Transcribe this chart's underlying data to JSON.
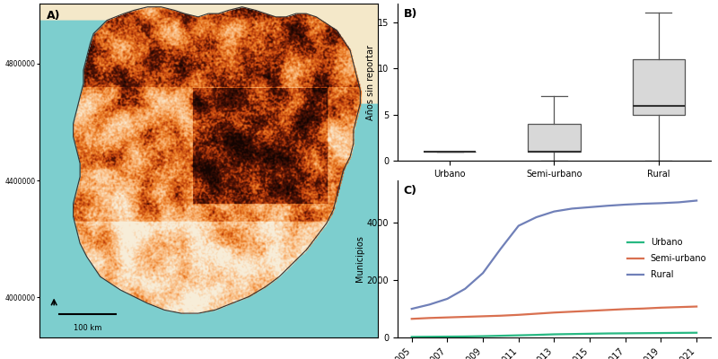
{
  "fig_width": 8.0,
  "fig_height": 4.0,
  "panel_bg": "#ffffff",
  "ocean_color": "#7ecece",
  "land_bg_color": "#f0e8d0",
  "boxplot": {
    "label": "B)",
    "ylabel": "Años sin reportar",
    "categories": [
      "Urbano",
      "Semi-urbano",
      "Rural"
    ],
    "urbano": {
      "median": 1,
      "q1": 1,
      "q3": 1,
      "whislo": 1,
      "whishi": 1
    },
    "semi_urbano": {
      "median": 1,
      "q1": 1,
      "q3": 4,
      "whislo": 0,
      "whishi": 7
    },
    "rural": {
      "median": 6,
      "q1": 5,
      "q3": 11,
      "whislo": 0,
      "whishi": 16
    },
    "ylim": [
      0,
      17
    ],
    "yticks": [
      0,
      5,
      10,
      15
    ],
    "box_facecolor": "#d8d8d8",
    "box_edgecolor": "#555555",
    "median_color": "#333333",
    "whisker_color": "#555555"
  },
  "lineplot": {
    "label": "C)",
    "ylabel": "Municipios",
    "xlabel_values": [
      "2005",
      "2007",
      "2009",
      "2011",
      "2013",
      "2015",
      "2017",
      "2019",
      "2021"
    ],
    "x_numeric": [
      2005,
      2006,
      2007,
      2008,
      2009,
      2010,
      2011,
      2012,
      2013,
      2014,
      2015,
      2016,
      2017,
      2018,
      2019,
      2020,
      2021
    ],
    "urbano_y": [
      20,
      25,
      30,
      35,
      45,
      60,
      75,
      90,
      110,
      120,
      130,
      140,
      145,
      150,
      155,
      160,
      165
    ],
    "semi_urbano_y": [
      650,
      680,
      700,
      720,
      740,
      760,
      790,
      830,
      870,
      900,
      930,
      960,
      990,
      1010,
      1040,
      1060,
      1080
    ],
    "rural_y": [
      1000,
      1150,
      1350,
      1700,
      2250,
      3100,
      3900,
      4200,
      4400,
      4500,
      4550,
      4600,
      4640,
      4670,
      4690,
      4720,
      4780
    ],
    "urbano_color": "#27b882",
    "semi_urbano_color": "#d97050",
    "rural_color": "#7080b8",
    "ylim": [
      0,
      5500
    ],
    "yticks": [
      0,
      2000,
      4000
    ],
    "legend_labels": [
      "Urbano",
      "Semi-urbano",
      "Rural"
    ]
  },
  "map": {
    "label": "A)",
    "ytick_positions": [
      0.12,
      0.47,
      0.82
    ],
    "ytick_labels": [
      "4000000",
      "4400000",
      "4800000"
    ],
    "scale_text": "100 km"
  }
}
